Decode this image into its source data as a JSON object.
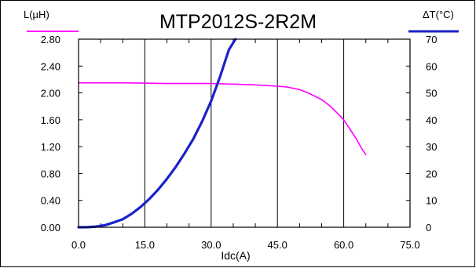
{
  "chart_data": {
    "type": "line",
    "title": "MTP2012S-2R2M",
    "xlabel": "Idc(A)",
    "xlim": [
      0,
      75
    ],
    "x_ticks": [
      "0.0",
      "15.0",
      "30.0",
      "45.0",
      "60.0",
      "75.0"
    ],
    "y_left": {
      "label": "L(µH)",
      "lim": [
        0,
        2.8
      ],
      "ticks": [
        "0.00",
        "0.40",
        "0.80",
        "1.20",
        "1.60",
        "2.00",
        "2.40",
        "2.80"
      ]
    },
    "y_right": {
      "label": "ΔT(°C)",
      "lim": [
        0,
        70
      ],
      "ticks": [
        "0",
        "10",
        "20",
        "30",
        "40",
        "50",
        "60",
        "70"
      ]
    },
    "grid": true,
    "series": [
      {
        "axis": "left",
        "color": "#ff00ff",
        "x": [
          0,
          10,
          20,
          30,
          35,
          40,
          45,
          47,
          50,
          52,
          55,
          57,
          59,
          60,
          61,
          62,
          63,
          64,
          65
        ],
        "y": [
          2.15,
          2.15,
          2.14,
          2.14,
          2.13,
          2.12,
          2.1,
          2.09,
          2.05,
          2.0,
          1.9,
          1.8,
          1.67,
          1.6,
          1.5,
          1.4,
          1.3,
          1.18,
          1.08
        ]
      },
      {
        "axis": "right",
        "color": "#1a22c8",
        "x": [
          0,
          2,
          4,
          6,
          8,
          10,
          12,
          14,
          16,
          18,
          20,
          22,
          24,
          26,
          28,
          30,
          32,
          34,
          35.5
        ],
        "y": [
          0,
          0.02,
          0.25,
          0.8,
          1.8,
          3.0,
          5.0,
          7.5,
          10.5,
          14.0,
          18.0,
          22.5,
          27.5,
          33.0,
          39.5,
          47.0,
          56.0,
          66.0,
          70.0
        ]
      }
    ]
  }
}
